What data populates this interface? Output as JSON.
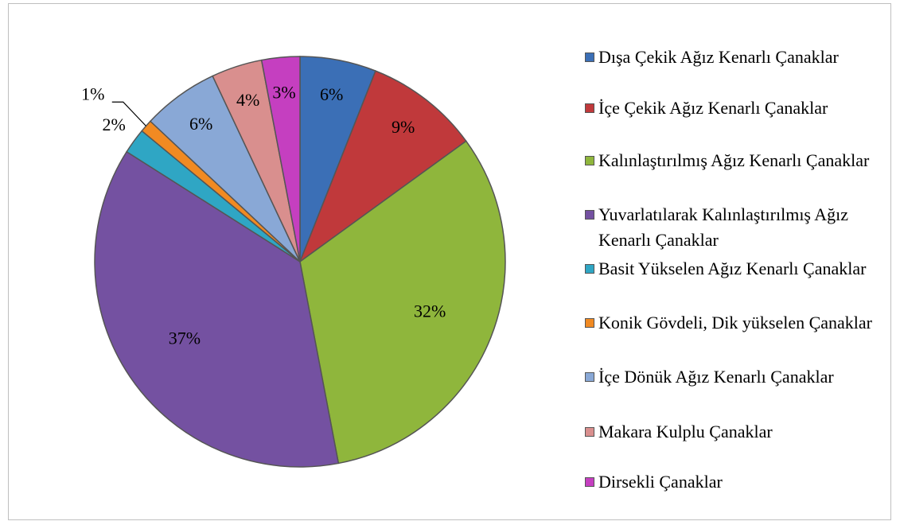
{
  "chart_data": {
    "type": "pie",
    "categories": [
      "Dışa Çekik Ağız Kenarlı Çanaklar",
      "İçe Çekik Ağız Kenarlı Çanaklar",
      "Kalınlaştırılmış Ağız Kenarlı Çanaklar",
      "Yuvarlatılarak Kalınlaştırılmış Ağız Kenarlı Çanaklar",
      "Basit Yükselen Ağız Kenarlı Çanaklar",
      "Konik Gövdeli, Dik yükselen Çanaklar",
      "İçe Dönük Ağız Kenarlı Çanaklar",
      "Makara Kulplu Çanaklar",
      "Dirsekli Çanaklar"
    ],
    "values": [
      6,
      9,
      32,
      37,
      2,
      1,
      6,
      4,
      3
    ],
    "value_labels": [
      "6%",
      "9%",
      "32%",
      "37%",
      "2%",
      "1%",
      "6%",
      "4%",
      "3%"
    ],
    "colors": [
      "#3b6fb6",
      "#c0393b",
      "#8fb63c",
      "#7451a1",
      "#2fa6c4",
      "#f18a22",
      "#89a8d6",
      "#d98f8e",
      "#c53fc0"
    ],
    "legend": "right"
  }
}
